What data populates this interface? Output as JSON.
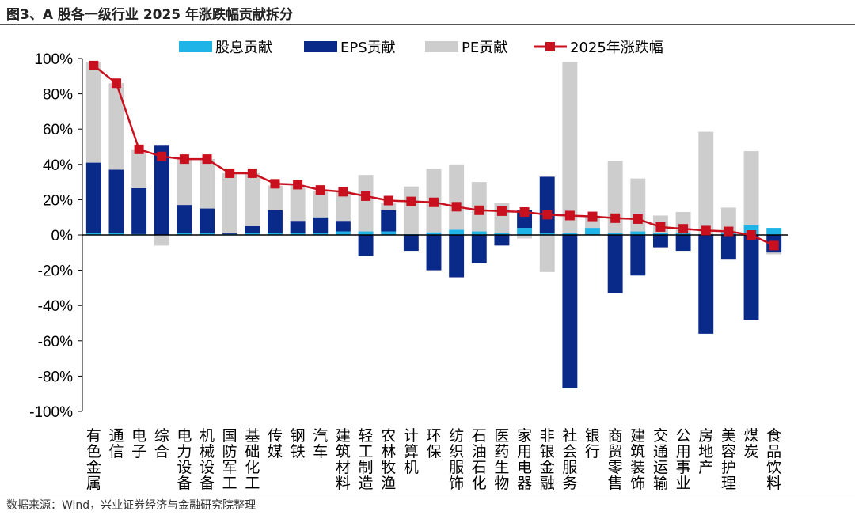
{
  "title": "图3、A 股各一级行业 2025 年涨跌幅贡献拆分",
  "source": "数据来源：Wind，兴业证券经济与金融研究院整理",
  "chart_data": {
    "type": "bar",
    "stacked": true,
    "ylim": [
      -100,
      100
    ],
    "yticks": [
      -100,
      -80,
      -60,
      -40,
      -20,
      0,
      20,
      40,
      60,
      80,
      100
    ],
    "ytick_labels": [
      "-100%",
      "-80%",
      "-60%",
      "-40%",
      "-20%",
      "0%",
      "20%",
      "40%",
      "60%",
      "80%",
      "100%"
    ],
    "categories": [
      "有色金属",
      "通信",
      "电子",
      "综合",
      "电力设备",
      "机械设备",
      "国防军工",
      "基础化工",
      "传媒",
      "钢铁",
      "汽车",
      "建筑材料",
      "轻工制造",
      "农林牧渔",
      "计算机",
      "环保",
      "纺织服饰",
      "石油石化",
      "医药生物",
      "家用电器",
      "非银金融",
      "社会服务",
      "银行",
      "商贸零售",
      "建筑装饰",
      "交通运输",
      "公用事业",
      "房地产",
      "美容护理",
      "煤炭",
      "食品饮料"
    ],
    "series": [
      {
        "name": "股息贡献",
        "kind": "bar",
        "color": "#1fb4e8",
        "values": [
          1,
          1,
          0.5,
          0,
          1,
          1,
          0.5,
          1,
          1,
          1,
          1,
          2,
          2,
          2,
          0.5,
          1.5,
          3,
          2,
          1,
          4,
          1,
          1,
          4,
          1,
          2,
          1,
          1,
          0.5,
          1.5,
          5.5,
          4
        ]
      },
      {
        "name": "EPS贡献",
        "kind": "bar",
        "color": "#0a2a8a",
        "values": [
          40,
          36,
          26,
          51,
          16,
          14,
          0.5,
          4,
          13,
          7,
          9,
          6,
          -12,
          12,
          -9,
          -20,
          -24,
          -16,
          -6,
          10,
          32,
          -87,
          0,
          -33,
          -23,
          -7,
          -9,
          -56,
          -14,
          -48,
          -10
        ]
      },
      {
        "name": "PE贡献",
        "kind": "bar",
        "color": "#cdcdcd",
        "values": [
          57,
          49,
          22,
          -6,
          26,
          28,
          34,
          30,
          14,
          20,
          15,
          17,
          32,
          4,
          27,
          36,
          37,
          28,
          17,
          -2,
          -21,
          97,
          7,
          41,
          30,
          10,
          12,
          58,
          14,
          42,
          -1
        ]
      },
      {
        "name": "2025年涨跌幅",
        "kind": "line",
        "color": "#c8101e",
        "values": [
          96,
          86,
          48.5,
          44.5,
          43,
          43,
          35,
          35,
          29,
          28.5,
          25.5,
          24.5,
          22,
          19.5,
          19,
          18.5,
          16,
          14,
          13.5,
          13,
          11.5,
          11,
          10.5,
          9.5,
          9,
          4.5,
          3.5,
          2.5,
          2,
          0,
          -6
        ]
      }
    ]
  }
}
